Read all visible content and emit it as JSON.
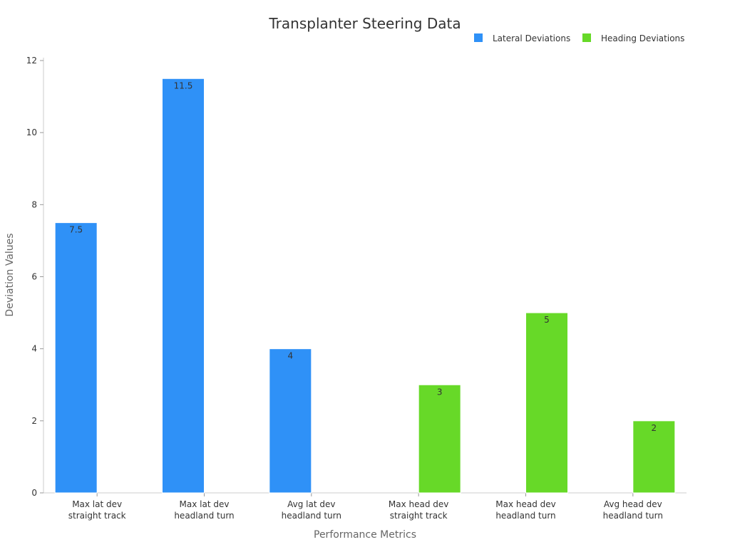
{
  "chart_data": {
    "type": "bar",
    "title": "Transplanter Steering Data",
    "xlabel": "Performance Metrics",
    "ylabel": "Deviation Values",
    "ylim": [
      0,
      12
    ],
    "yticks": [
      0,
      2,
      4,
      6,
      8,
      10,
      12
    ],
    "grid": false,
    "legend_position": "top-right",
    "categories": [
      [
        "Max lat dev",
        "straight track"
      ],
      [
        "Max lat dev",
        "headland turn"
      ],
      [
        "Avg lat dev",
        "headland turn"
      ],
      [
        "Max head dev",
        "straight track"
      ],
      [
        "Max head dev",
        "headland turn"
      ],
      [
        "Avg head dev",
        "headland turn"
      ]
    ],
    "series": [
      {
        "name": "Lateral Deviations",
        "color": "#2f91f7",
        "values": [
          7.5,
          11.5,
          4,
          null,
          null,
          null
        ],
        "labels": [
          "7.5",
          "11.5",
          "4",
          "",
          "",
          ""
        ]
      },
      {
        "name": "Heading Deviations",
        "color": "#67d928",
        "values": [
          null,
          null,
          null,
          3,
          5,
          2
        ],
        "labels": [
          "",
          "",
          "",
          "3",
          "5",
          "2"
        ]
      }
    ]
  }
}
